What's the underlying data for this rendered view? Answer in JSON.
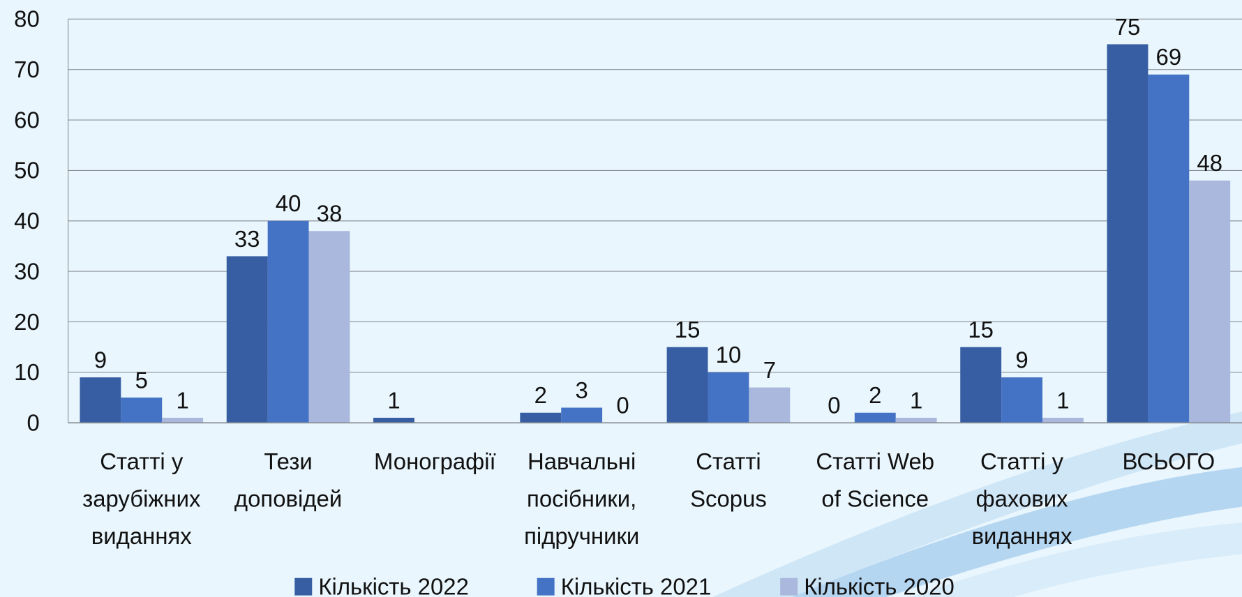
{
  "chart_data": {
    "type": "bar",
    "categories": [
      "Статті у\nзарубіжних\nвиданнях",
      "Тези\nдоповідей",
      "Монографії",
      "Навчальні\nпосібники,\nпідручники",
      "Статті\nScopus",
      "Статті Web\nof Science",
      "Статті у\nфахових\nвиданнях",
      "ВСЬОГО"
    ],
    "series": [
      {
        "name": "Кількість 2022",
        "color": "#375ea2",
        "values": [
          9,
          33,
          1,
          2,
          15,
          0,
          15,
          75
        ]
      },
      {
        "name": "Кількість 2021",
        "color": "#4472c4",
        "values": [
          5,
          40,
          null,
          3,
          10,
          2,
          9,
          69
        ]
      },
      {
        "name": "Кількість 2020",
        "color": "#a9b8dc",
        "values": [
          1,
          38,
          null,
          0,
          7,
          1,
          1,
          48
        ]
      }
    ],
    "ylim": [
      0,
      80
    ],
    "yticks": [
      0,
      10,
      20,
      30,
      40,
      50,
      60,
      70,
      80
    ],
    "grid": true,
    "legend": "bottom"
  }
}
